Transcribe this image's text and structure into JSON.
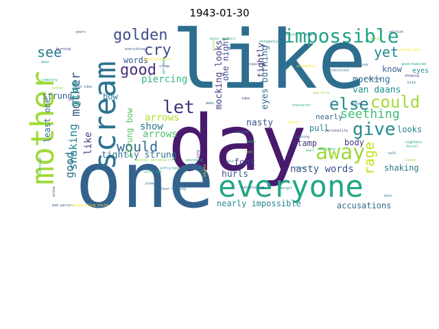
{
  "title": "1943-01-30",
  "words": [
    {
      "text": "like",
      "color": "#2d6e8e"
    },
    {
      "text": "day",
      "color": "#481a6c"
    },
    {
      "text": "one",
      "color": "#33638d"
    },
    {
      "text": "everyone",
      "color": "#22a785"
    },
    {
      "text": "mother",
      "color": "#a0da39"
    },
    {
      "text": "scream",
      "color": "#2c728e"
    },
    {
      "text": "impossible",
      "color": "#1fa187"
    },
    {
      "text": "golden",
      "color": "#3d4e8a"
    },
    {
      "text": "cry",
      "color": "#3e4989"
    },
    {
      "text": "good",
      "color": "#472d7b"
    },
    {
      "text": "let",
      "color": "#46337e"
    },
    {
      "text": "see",
      "color": "#2a788e"
    },
    {
      "text": "yet",
      "color": "#24868e"
    },
    {
      "text": "away",
      "color": "#9dd93b"
    },
    {
      "text": "give",
      "color": "#23898e"
    },
    {
      "text": "could",
      "color": "#a2da37"
    },
    {
      "text": "else",
      "color": "#23888e"
    },
    {
      "text": "would",
      "color": "#31688e"
    },
    {
      "text": "seething",
      "color": "#3fbc73"
    },
    {
      "text": "rage",
      "color": "#cae11f"
    },
    {
      "text": "mother",
      "color": "#39568c"
    },
    {
      "text": "good",
      "color": "#2e6f8e"
    },
    {
      "text": "shaking",
      "color": "#25848e"
    },
    {
      "text": "give",
      "color": "#1e9c89"
    },
    {
      "text": "arrows",
      "color": "#b5de2b"
    },
    {
      "text": "arrows",
      "color": "#4ac16d"
    },
    {
      "text": "like",
      "color": "#414487"
    },
    {
      "text": "strung bow",
      "color": "#54c568"
    },
    {
      "text": "show",
      "color": "#2a788e"
    },
    {
      "text": "tightly strung",
      "color": "#2c728e"
    },
    {
      "text": "nasty words",
      "color": "#3b528b"
    },
    {
      "text": "accusations",
      "color": "#31688e"
    },
    {
      "text": "nearly impossible",
      "color": "#24868e"
    },
    {
      "text": "hurls",
      "color": "#38588c"
    },
    {
      "text": "foot",
      "color": "#404688"
    },
    {
      "text": "stamp",
      "color": "#443983"
    },
    {
      "text": "pull",
      "color": "#287d8e"
    },
    {
      "text": "body",
      "color": "#46327e"
    },
    {
      "text": "looks",
      "color": "#277f8e"
    },
    {
      "text": "shaking",
      "color": "#2a768e"
    },
    {
      "text": "nearly",
      "color": "#31688e"
    },
    {
      "text": "mocking",
      "color": "#2d708e"
    },
    {
      "text": "van daans",
      "color": "#20928c"
    },
    {
      "text": "know",
      "color": "#355f8d"
    },
    {
      "text": "eyes burning",
      "color": "#2c738e"
    },
    {
      "text": "nasty",
      "color": "#3b528b"
    },
    {
      "text": "mocking looks",
      "color": "#443b84"
    },
    {
      "text": "one night",
      "color": "#3e4989"
    },
    {
      "text": "tightly",
      "color": "#472a7a"
    },
    {
      "text": "piercing",
      "color": "#35b779"
    },
    {
      "text": "bow",
      "color": "#287c8e"
    },
    {
      "text": "words",
      "color": "#39568c"
    },
    {
      "text": "strung",
      "color": "#365d8d"
    },
    {
      "text": "least one",
      "color": "#31688e"
    },
    {
      "text": "eyes",
      "color": "#228c8d"
    }
  ],
  "small_words": [
    "burning",
    "years",
    "bear",
    "sympathy",
    "father",
    "good idea",
    "everything",
    "head pounding",
    "get away",
    "sleep",
    "make",
    "silent",
    "daans",
    "one bite",
    "ridiculous",
    "insolent",
    "screaming",
    "character",
    "idea",
    "cowardly",
    "antagonize",
    "never suspect",
    "wounds",
    "doubts",
    "selfish",
    "screen even",
    "good-humored",
    "showing",
    "bite",
    "nightetc",
    "dussel",
    "leave",
    "talk",
    "thinks",
    "world",
    "derision",
    "personality",
    "cunning",
    "answer",
    "want",
    "lazy",
    "best",
    "calculating",
    "stupid",
    "pounding",
    "day long",
    "please",
    "inflicted",
    "could ask",
    "another personality",
    "hear nothing",
    "bad person",
    "exasperating child",
    "although",
    "alone",
    "ever",
    "margot",
    "sharp",
    "bring",
    "look",
    "anything"
  ]
}
